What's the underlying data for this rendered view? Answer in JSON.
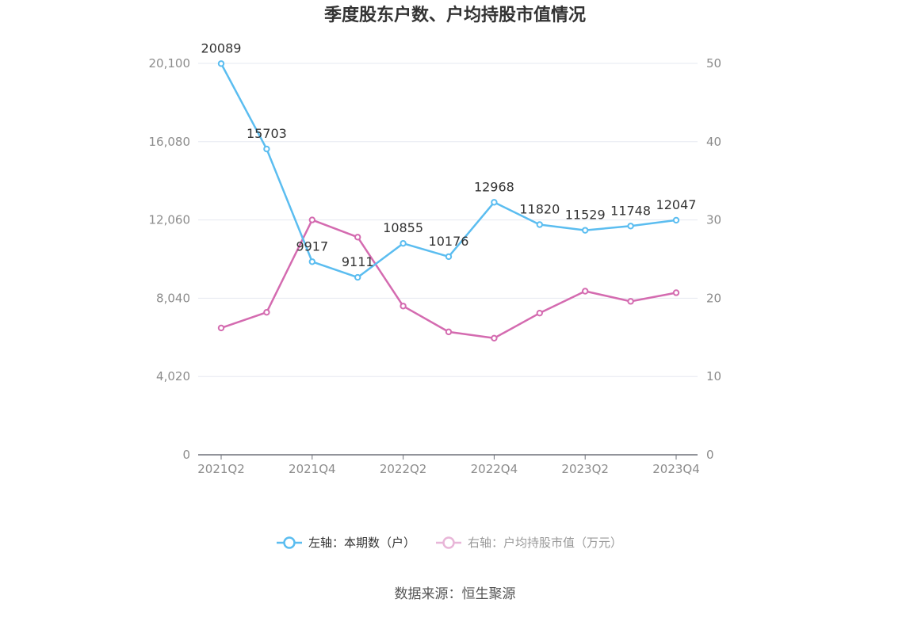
{
  "chart_data": {
    "type": "line",
    "title": "季度股东户数、户均持股市值情况",
    "categories": [
      "2021Q2",
      "2021Q3",
      "2021Q4",
      "2022Q1",
      "2022Q2",
      "2022Q3",
      "2022Q4",
      "2023Q1",
      "2023Q2",
      "2023Q3",
      "2023Q4"
    ],
    "x_tick_labels": [
      "2021Q2",
      "2021Q4",
      "2022Q2",
      "2022Q4",
      "2023Q2",
      "2023Q4"
    ],
    "series": [
      {
        "name": "左轴：本期数（户）",
        "axis": "left",
        "color": "#5bbdf0",
        "values": [
          20089,
          15703,
          9917,
          9111,
          10855,
          10176,
          12968,
          11820,
          11529,
          11748,
          12047
        ],
        "data_labels": [
          "20089",
          "15703",
          "9917",
          "9111",
          "10855",
          "10176",
          "12968",
          "11820",
          "11529",
          "11748",
          "12047"
        ]
      },
      {
        "name": "右轴：户均持股市值（万元）",
        "axis": "right",
        "color": "#d46bb0",
        "values": [
          16.2,
          18.2,
          30.0,
          27.8,
          19.0,
          15.7,
          14.9,
          18.1,
          20.9,
          19.6,
          20.7
        ]
      }
    ],
    "y_left": {
      "min": 0,
      "max": 20100,
      "ticks": [
        0,
        4020,
        8040,
        12060,
        16080,
        20100
      ],
      "tick_labels": [
        "0",
        "4,020",
        "8,040",
        "12,060",
        "16,080",
        "20,100"
      ]
    },
    "y_right": {
      "min": 0,
      "max": 50,
      "ticks": [
        0,
        10,
        20,
        30,
        40,
        50
      ],
      "tick_labels": [
        "0",
        "10",
        "20",
        "30",
        "40",
        "50"
      ]
    },
    "grid": true,
    "legend_position": "bottom"
  },
  "source": "数据来源：恒生聚源",
  "colors": {
    "title": "#333333",
    "axis_text": "#8c8c8c",
    "gridline": "#e6e8f0",
    "axis_line": "#6e7079",
    "legend_inactive_text": "#999999",
    "legend_inactive_icon": "#e8b6d8"
  }
}
